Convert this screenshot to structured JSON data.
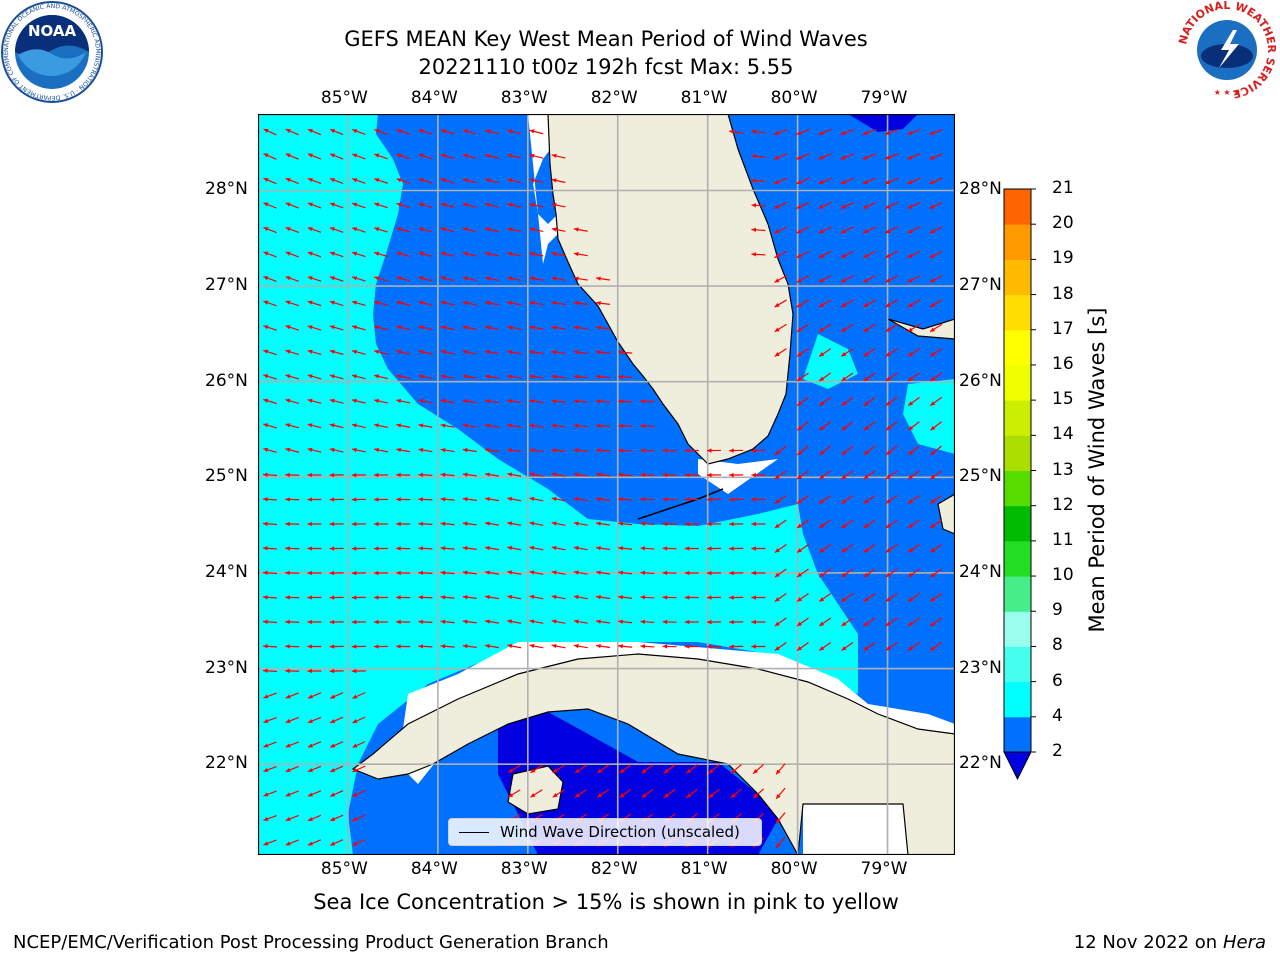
{
  "title": {
    "line1": "GEFS MEAN Key West Mean Period of Wind Waves",
    "line2": "20221110 t00z 192h fcst   Max: 5.55"
  },
  "map": {
    "lon_labels": [
      "85°W",
      "84°W",
      "83°W",
      "82°W",
      "81°W",
      "80°W",
      "79°W"
    ],
    "lat_labels": [
      "28°N",
      "27°N",
      "26°N",
      "25°N",
      "24°N",
      "23°N",
      "22°N"
    ],
    "lon_range": [
      -86.0,
      -78.25
    ],
    "lat_range": [
      21.05,
      28.8
    ],
    "land_color": "#efeddc",
    "arrow_color": "#ff0000",
    "grid_color": "#b0b0b0"
  },
  "legend": {
    "label": "Wind Wave Direction (unscaled)"
  },
  "colorbar": {
    "label": "Mean Period of Wind Waves [s]",
    "ticks": [
      "2",
      "4",
      "6",
      "8",
      "9",
      "10",
      "11",
      "12",
      "13",
      "14",
      "15",
      "16",
      "17",
      "18",
      "19",
      "20",
      "21"
    ],
    "colors": [
      "#0070ff",
      "#00ffff",
      "#44ffee",
      "#99ffee",
      "#44ee88",
      "#22dd22",
      "#00bb00",
      "#55dd00",
      "#aadd00",
      "#ccee00",
      "#eeff00",
      "#ffff00",
      "#ffdd00",
      "#ffbb00",
      "#ff9900",
      "#ff6600",
      "#ff3300",
      "#ff0000"
    ],
    "under_color": "#0000e0"
  },
  "caption": "Sea Ice Concentration > 15% is shown in pink to yellow",
  "footer": {
    "left": "NCEP/EMC/Verification Post Processing Product Generation Branch",
    "right_prefix": "12 Nov 2022 on",
    "right_host": "Hera"
  },
  "logos": {
    "noaa_text": "NOAA",
    "noaa_ring": "NATIONAL OCEANIC AND ATMOSPHERIC ADMINISTRATION · U.S. DEPARTMENT OF COMMERCE",
    "nws_ring": "NATIONAL WEATHER SERVICE"
  }
}
